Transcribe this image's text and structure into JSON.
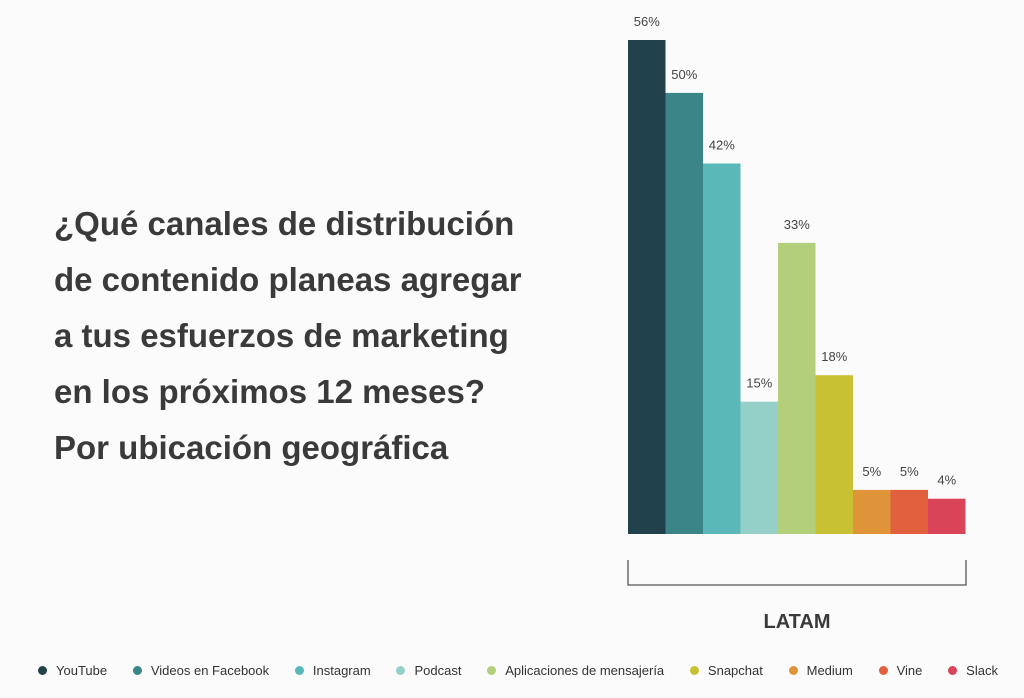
{
  "question": {
    "lines": [
      "¿Qué canales de distribución",
      "de contenido planeas agregar",
      "a tus esfuerzos de marketing",
      "en los próximos 12 meses?",
      "Por ubicación geográfica"
    ]
  },
  "chart_data": {
    "type": "bar",
    "group_label": "LATAM",
    "unit": "%",
    "ylim": [
      0,
      56
    ],
    "categories": [
      "YouTube",
      "Videos en Facebook",
      "Instagram",
      "Podcast",
      "Aplicaciones de mensajería",
      "Snapchat",
      "Medium",
      "Vine",
      "Slack"
    ],
    "values": [
      56,
      50,
      42,
      15,
      33,
      18,
      5,
      5,
      4
    ],
    "labels": [
      "56%",
      "50%",
      "42%",
      "15%",
      "33%",
      "18%",
      "5%",
      "5%",
      "4%"
    ],
    "colors": [
      "#21424c",
      "#3b8487",
      "#5ab8b8",
      "#95d0c8",
      "#b3cf7c",
      "#c9c134",
      "#e0943a",
      "#e1613e",
      "#d94458"
    ]
  }
}
